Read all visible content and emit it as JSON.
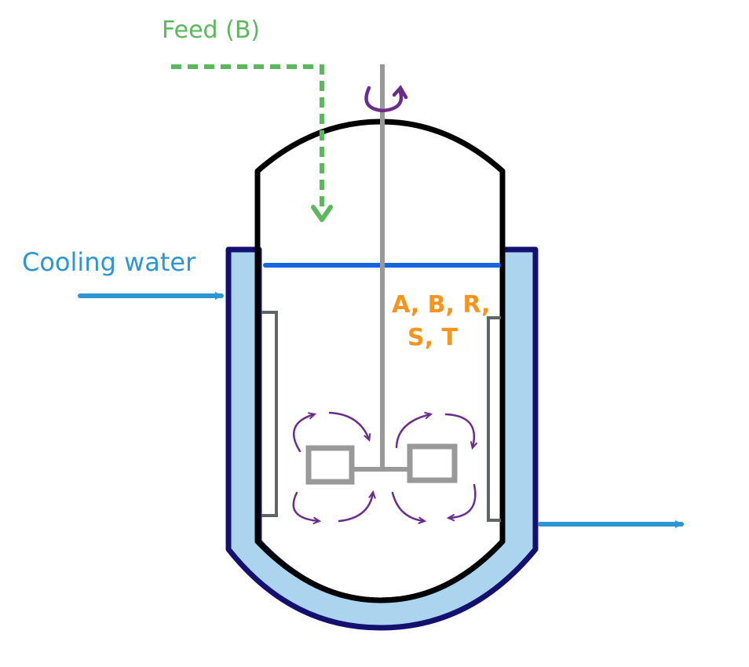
{
  "labels": {
    "feed": "Feed (B)",
    "cooling_water": "Cooling water",
    "species_line1": "A, B, R,",
    "species_line2": "S, T"
  },
  "colors": {
    "feed": "#5cb85c",
    "cooling_water": "#2e95d3",
    "species": "#f7941d",
    "jacket_outline": "#141070",
    "jacket_fill": "#abd4ee",
    "vessel": "#000000",
    "liquid_level": "#1565e0",
    "shaft": "#999999",
    "baffle": "#5f6466",
    "flow_arrows": "#6a2d8c"
  }
}
